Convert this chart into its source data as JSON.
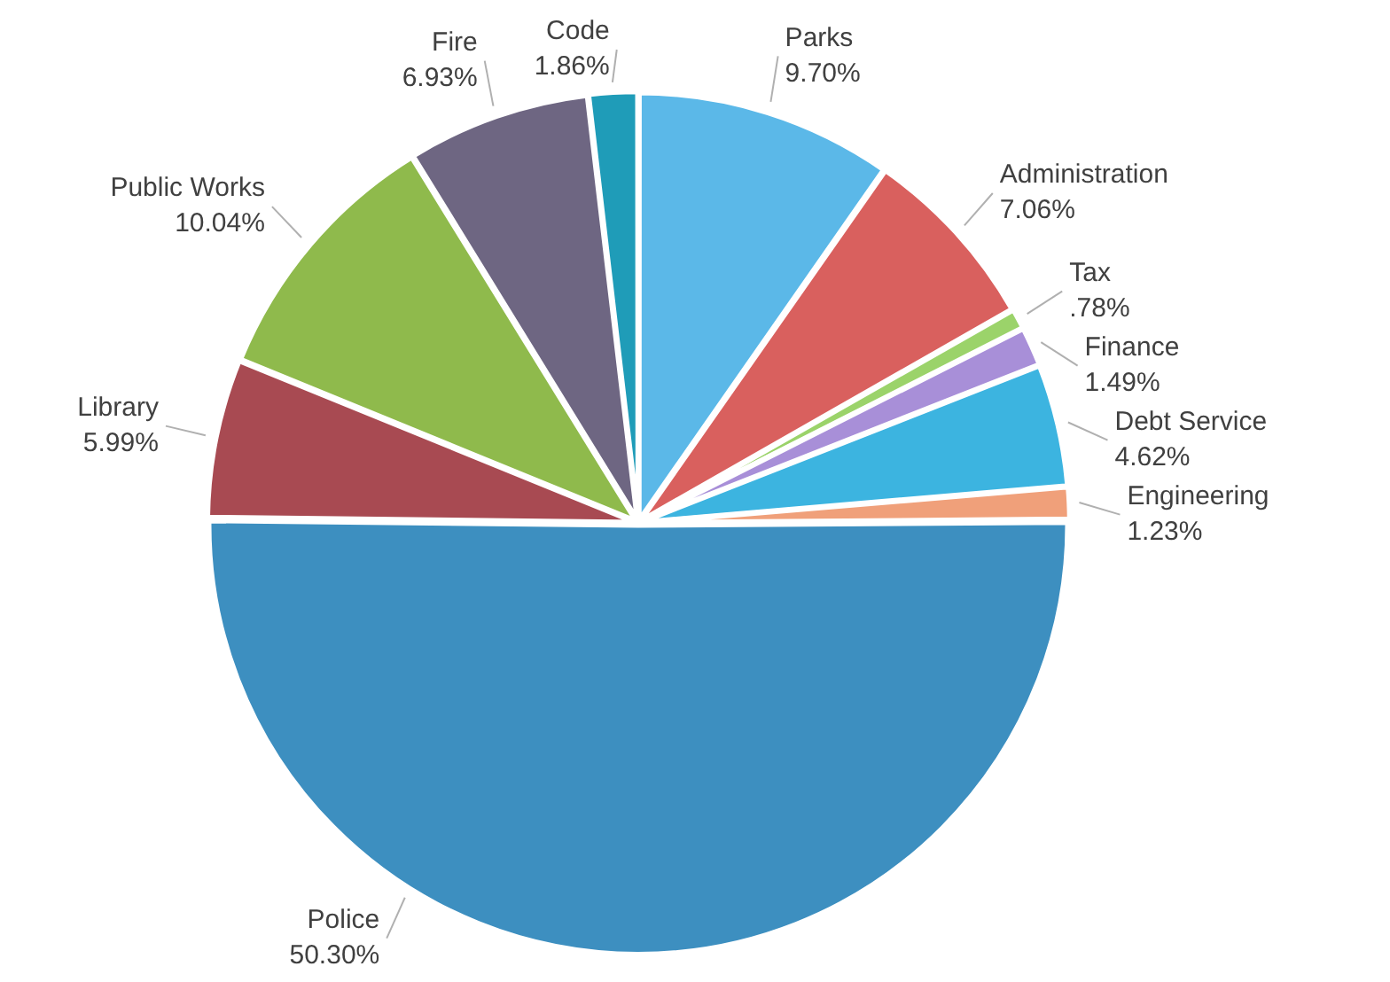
{
  "chart_data": {
    "type": "pie",
    "categories": [
      "Parks",
      "Administration",
      "Tax",
      "Finance",
      "Debt Service",
      "Engineering",
      "Police",
      "Library",
      "Public Works",
      "Fire",
      "Code"
    ],
    "values": [
      9.7,
      7.06,
      0.78,
      1.49,
      4.62,
      1.23,
      50.3,
      5.99,
      10.04,
      6.93,
      1.86
    ],
    "value_labels": [
      "9.70%",
      "7.06%",
      ".78%",
      "1.49%",
      "4.62%",
      "1.23%",
      "50.30%",
      "5.99%",
      "10.04%",
      "6.93%",
      "1.86%"
    ],
    "colors": [
      "#5bb8e8",
      "#d9605e",
      "#9bd36a",
      "#a88fd8",
      "#3cb4e0",
      "#f0a07a",
      "#3d8fc0",
      "#a84a52",
      "#8fba4c",
      "#6e6682",
      "#1f9cb8"
    ],
    "legend": false
  }
}
